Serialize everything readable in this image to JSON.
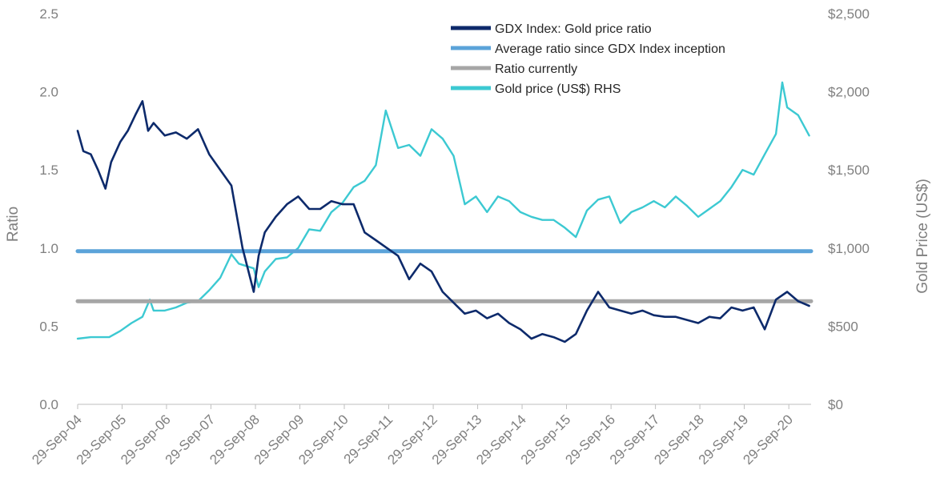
{
  "chart_data": {
    "type": "line",
    "title": "",
    "xlabel": "",
    "ylabel": "Ratio",
    "y2label": "Gold Price (US$)",
    "ylim": [
      0,
      2.5
    ],
    "y2lim": [
      0,
      2500
    ],
    "y_ticks": [
      "0.0",
      "0.5",
      "1.0",
      "1.5",
      "2.0",
      "2.5"
    ],
    "y2_ticks": [
      "$0",
      "$500",
      "$1,000",
      "$1,500",
      "$2,000",
      "$2,500"
    ],
    "x_ticks": [
      "29-Sep-04",
      "29-Sep-05",
      "29-Sep-06",
      "29-Sep-07",
      "29-Sep-08",
      "29-Sep-09",
      "29-Sep-10",
      "29-Sep-11",
      "29-Sep-12",
      "29-Sep-13",
      "29-Sep-14",
      "29-Sep-15",
      "29-Sep-16",
      "29-Sep-17",
      "29-Sep-18",
      "29-Sep-19",
      "29-Sep-20"
    ],
    "xlim": [
      "2004-09-29",
      "2021-03-31"
    ],
    "grid": false,
    "legend_position": "top-center",
    "series": [
      {
        "name": "GDX Index: Gold price ratio",
        "axis": "left",
        "color": "#0d2a6b",
        "x": [
          "2004-09-29",
          "2004-11-15",
          "2005-01-15",
          "2005-03-15",
          "2005-05-15",
          "2005-07-01",
          "2005-09-15",
          "2005-11-15",
          "2006-01-15",
          "2006-03-15",
          "2006-05-01",
          "2006-06-15",
          "2006-09-15",
          "2006-12-15",
          "2007-03-15",
          "2007-06-15",
          "2007-09-15",
          "2007-12-15",
          "2008-03-15",
          "2008-06-15",
          "2008-09-15",
          "2008-10-25",
          "2008-12-15",
          "2009-03-15",
          "2009-06-15",
          "2009-09-15",
          "2009-12-15",
          "2010-03-15",
          "2010-06-15",
          "2010-09-15",
          "2010-12-15",
          "2011-03-15",
          "2011-06-15",
          "2011-09-15",
          "2011-12-15",
          "2012-03-15",
          "2012-06-15",
          "2012-09-15",
          "2012-12-15",
          "2013-03-15",
          "2013-06-15",
          "2013-09-15",
          "2013-12-15",
          "2014-03-15",
          "2014-06-15",
          "2014-09-15",
          "2014-12-15",
          "2015-03-15",
          "2015-06-15",
          "2015-09-15",
          "2015-12-15",
          "2016-03-15",
          "2016-06-15",
          "2016-09-15",
          "2016-12-15",
          "2017-03-15",
          "2017-06-15",
          "2017-09-15",
          "2017-12-15",
          "2018-03-15",
          "2018-06-15",
          "2018-09-15",
          "2018-12-15",
          "2019-03-15",
          "2019-06-15",
          "2019-09-15",
          "2019-12-15",
          "2020-03-15",
          "2020-06-15",
          "2020-09-15",
          "2020-12-15",
          "2021-03-15"
        ],
        "values": [
          1.75,
          1.62,
          1.6,
          1.5,
          1.38,
          1.55,
          1.68,
          1.75,
          1.85,
          1.94,
          1.75,
          1.8,
          1.72,
          1.74,
          1.7,
          1.76,
          1.6,
          1.5,
          1.4,
          1.0,
          0.72,
          0.95,
          1.1,
          1.2,
          1.28,
          1.33,
          1.25,
          1.25,
          1.3,
          1.28,
          1.28,
          1.1,
          1.05,
          1.0,
          0.95,
          0.8,
          0.9,
          0.85,
          0.72,
          0.65,
          0.58,
          0.6,
          0.55,
          0.58,
          0.52,
          0.48,
          0.42,
          0.45,
          0.43,
          0.4,
          0.45,
          0.6,
          0.72,
          0.62,
          0.6,
          0.58,
          0.6,
          0.57,
          0.56,
          0.56,
          0.54,
          0.52,
          0.56,
          0.55,
          0.62,
          0.6,
          0.62,
          0.48,
          0.67,
          0.72,
          0.66,
          0.63
        ]
      },
      {
        "name": "Average ratio since GDX Index inception",
        "axis": "left",
        "color": "#5ba3d9",
        "x": [
          "2004-09-29",
          "2021-03-31"
        ],
        "values": [
          0.98,
          0.98
        ]
      },
      {
        "name": "Ratio currently",
        "axis": "left",
        "color": "#a6a6a6",
        "x": [
          "2004-09-29",
          "2021-03-31"
        ],
        "values": [
          0.66,
          0.66
        ]
      },
      {
        "name": "Gold price (US$) RHS",
        "axis": "right",
        "color": "#3cc9d2",
        "x": [
          "2004-09-29",
          "2005-01-15",
          "2005-06-15",
          "2005-09-15",
          "2005-12-15",
          "2006-03-15",
          "2006-05-15",
          "2006-06-15",
          "2006-09-15",
          "2006-12-15",
          "2007-03-15",
          "2007-06-15",
          "2007-09-15",
          "2007-12-15",
          "2008-03-15",
          "2008-05-15",
          "2008-09-15",
          "2008-10-25",
          "2008-12-15",
          "2009-03-15",
          "2009-06-15",
          "2009-09-15",
          "2009-12-15",
          "2010-03-15",
          "2010-06-15",
          "2010-09-15",
          "2010-12-15",
          "2011-03-15",
          "2011-06-15",
          "2011-09-05",
          "2011-12-15",
          "2012-03-15",
          "2012-06-15",
          "2012-09-15",
          "2012-12-15",
          "2013-03-15",
          "2013-06-15",
          "2013-09-15",
          "2013-12-15",
          "2014-03-15",
          "2014-06-15",
          "2014-09-15",
          "2014-12-15",
          "2015-03-15",
          "2015-06-15",
          "2015-09-15",
          "2015-12-15",
          "2016-03-15",
          "2016-06-15",
          "2016-09-15",
          "2016-12-15",
          "2017-03-15",
          "2017-06-15",
          "2017-09-15",
          "2017-12-15",
          "2018-03-15",
          "2018-06-15",
          "2018-09-15",
          "2018-12-15",
          "2019-03-15",
          "2019-06-15",
          "2019-09-15",
          "2019-12-15",
          "2020-03-15",
          "2020-06-15",
          "2020-08-06",
          "2020-09-15",
          "2020-12-15",
          "2021-03-15"
        ],
        "values": [
          420,
          430,
          430,
          470,
          520,
          560,
          670,
          600,
          600,
          620,
          650,
          660,
          730,
          810,
          960,
          900,
          870,
          750,
          850,
          930,
          940,
          1000,
          1120,
          1110,
          1230,
          1290,
          1390,
          1430,
          1530,
          1880,
          1640,
          1660,
          1590,
          1760,
          1700,
          1590,
          1280,
          1330,
          1230,
          1330,
          1300,
          1230,
          1200,
          1180,
          1180,
          1130,
          1070,
          1240,
          1310,
          1330,
          1160,
          1230,
          1260,
          1300,
          1260,
          1330,
          1270,
          1200,
          1250,
          1300,
          1390,
          1500,
          1470,
          1600,
          1730,
          2060,
          1900,
          1850,
          1720
        ]
      }
    ]
  }
}
